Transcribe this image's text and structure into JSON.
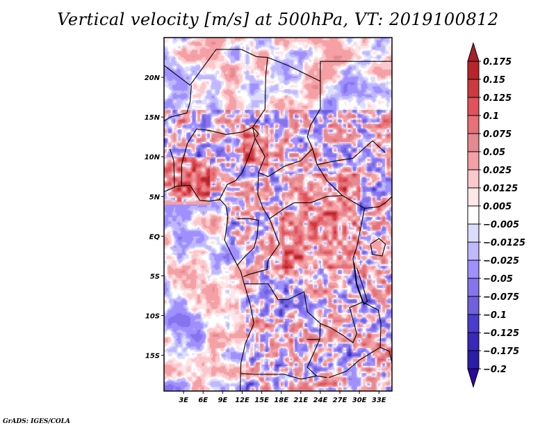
{
  "chart_data": {
    "type": "heatmap",
    "title": "Vertical velocity [m/s] at 500hPa, VT: 2019100812",
    "variable": "Vertical velocity",
    "units": "m/s",
    "level": "500hPa",
    "valid_time": "2019100812",
    "xlabel": "",
    "ylabel": "",
    "x_range": [
      0,
      35
    ],
    "y_range": [
      -19.5,
      25
    ],
    "x_ticks": [
      {
        "value": 3,
        "label": "3E"
      },
      {
        "value": 6,
        "label": "6E"
      },
      {
        "value": 9,
        "label": "9E"
      },
      {
        "value": 12,
        "label": "12E"
      },
      {
        "value": 15,
        "label": "15E"
      },
      {
        "value": 18,
        "label": "18E"
      },
      {
        "value": 21,
        "label": "21E"
      },
      {
        "value": 24,
        "label": "24E"
      },
      {
        "value": 27,
        "label": "27E"
      },
      {
        "value": 30,
        "label": "30E"
      },
      {
        "value": 33,
        "label": "33E"
      }
    ],
    "y_ticks": [
      {
        "value": 20,
        "label": "20N"
      },
      {
        "value": 15,
        "label": "15N"
      },
      {
        "value": 10,
        "label": "10N"
      },
      {
        "value": 5,
        "label": "5N"
      },
      {
        "value": 0,
        "label": "EQ"
      },
      {
        "value": -5,
        "label": "5S"
      },
      {
        "value": -10,
        "label": "10S"
      },
      {
        "value": -15,
        "label": "15S"
      }
    ],
    "grid": false,
    "legend": "right",
    "colorbar": {
      "orientation": "vertical",
      "extend": "both",
      "levels": [
        0.175,
        0.15,
        0.125,
        0.1,
        0.075,
        0.05,
        0.025,
        0.0125,
        0.005,
        -0.005,
        -0.0125,
        -0.025,
        -0.05,
        -0.075,
        -0.1,
        -0.125,
        -0.175,
        -0.2
      ],
      "labels": [
        "0.175",
        "0.15",
        "0.125",
        "0.1",
        "0.075",
        "0.05",
        "0.025",
        "0.0125",
        "0.005",
        "−0.005",
        "−0.0125",
        "−0.025",
        "−0.05",
        "−0.075",
        "−0.1",
        "−0.125",
        "−0.175",
        "−0.2"
      ],
      "top_arrow_color": "#a8202a",
      "bottom_arrow_color": "#2a0aa0",
      "colors": [
        "#b8242c",
        "#cc3a40",
        "#e2525a",
        "#e87078",
        "#e48a90",
        "#f4a0a4",
        "#fcc8cc",
        "#ffe6e8",
        "#ffffff",
        "#dcdcff",
        "#c0b8ff",
        "#a090ff",
        "#8674ee",
        "#7060dc",
        "#4a3ccc",
        "#3a28b8",
        "#2c1ca8"
      ]
    },
    "regions_summary": [
      {
        "region": "Sahel 10N-15N, 3E-33E",
        "sign": "mixed, strong ascent (red) near 13-15E and 27-33E"
      },
      {
        "region": "Gulf of Guinea coast 5N-10N, 0-6E",
        "sign": "ascent (red)"
      },
      {
        "region": "Congo Basin 0-5N, 20E-30E",
        "sign": "ascent (red)"
      },
      {
        "region": "Angola 10S-15S, 14E-20E",
        "sign": "mixed strong ascent/descent"
      },
      {
        "region": "South Atlantic 0-19S, 0-10E",
        "sign": "weak descent (blue) / weak ascent patches"
      }
    ]
  },
  "footer": {
    "credit": "GrADS: IGES/COLA"
  }
}
